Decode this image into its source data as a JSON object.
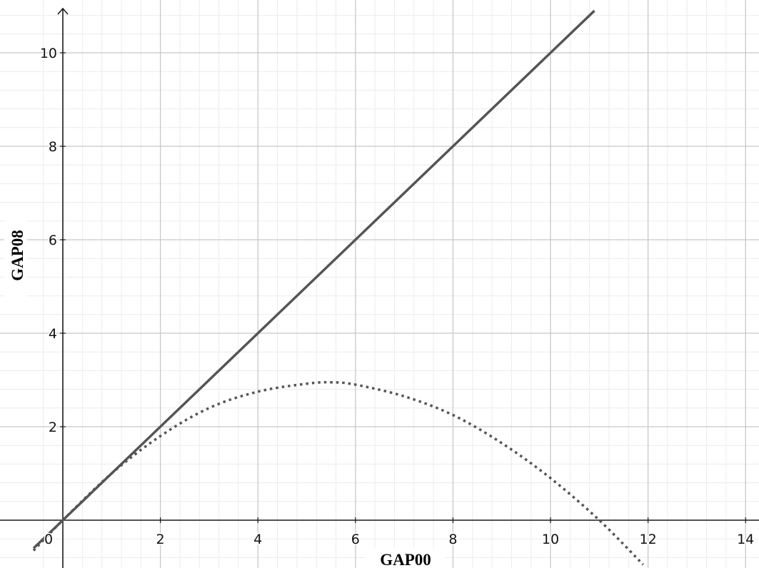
{
  "chart_data": {
    "type": "line",
    "title": "",
    "xlabel": "GAP00",
    "ylabel": "GAP08",
    "xlim": [
      -0.6,
      14.5
    ],
    "ylim": [
      -1,
      11
    ],
    "grid": true,
    "minor_grid": true,
    "x_ticks": [
      {
        "v": 0,
        "label": "0"
      },
      {
        "v": 2,
        "label": "2"
      },
      {
        "v": 4,
        "label": "4"
      },
      {
        "v": 6,
        "label": "6"
      },
      {
        "v": 8,
        "label": "8"
      },
      {
        "v": 10,
        "label": "10"
      },
      {
        "v": 12,
        "label": "12"
      },
      {
        "v": 14,
        "label": "14"
      }
    ],
    "y_ticks": [
      {
        "v": 2,
        "label": "2"
      },
      {
        "v": 4,
        "label": "4"
      },
      {
        "v": 6,
        "label": "6"
      },
      {
        "v": 8,
        "label": "8"
      },
      {
        "v": 10,
        "label": "10"
      }
    ],
    "series": [
      {
        "style": "solid",
        "color": "#555555",
        "x": [
          -0.6,
          0,
          2,
          4,
          6,
          8,
          10,
          10.9
        ],
        "y": [
          -0.6,
          0,
          2,
          4,
          6,
          8,
          10,
          10.9
        ]
      },
      {
        "style": "dotted",
        "color": "#555555",
        "x": [
          -0.6,
          0,
          1,
          2,
          3,
          4,
          5,
          5.5,
          6,
          7,
          8,
          9,
          10,
          11,
          11.9
        ],
        "y": [
          -0.65,
          0,
          1.0,
          1.8,
          2.4,
          2.75,
          2.92,
          2.95,
          2.9,
          2.65,
          2.25,
          1.65,
          0.9,
          0.0,
          -0.95
        ]
      }
    ]
  }
}
